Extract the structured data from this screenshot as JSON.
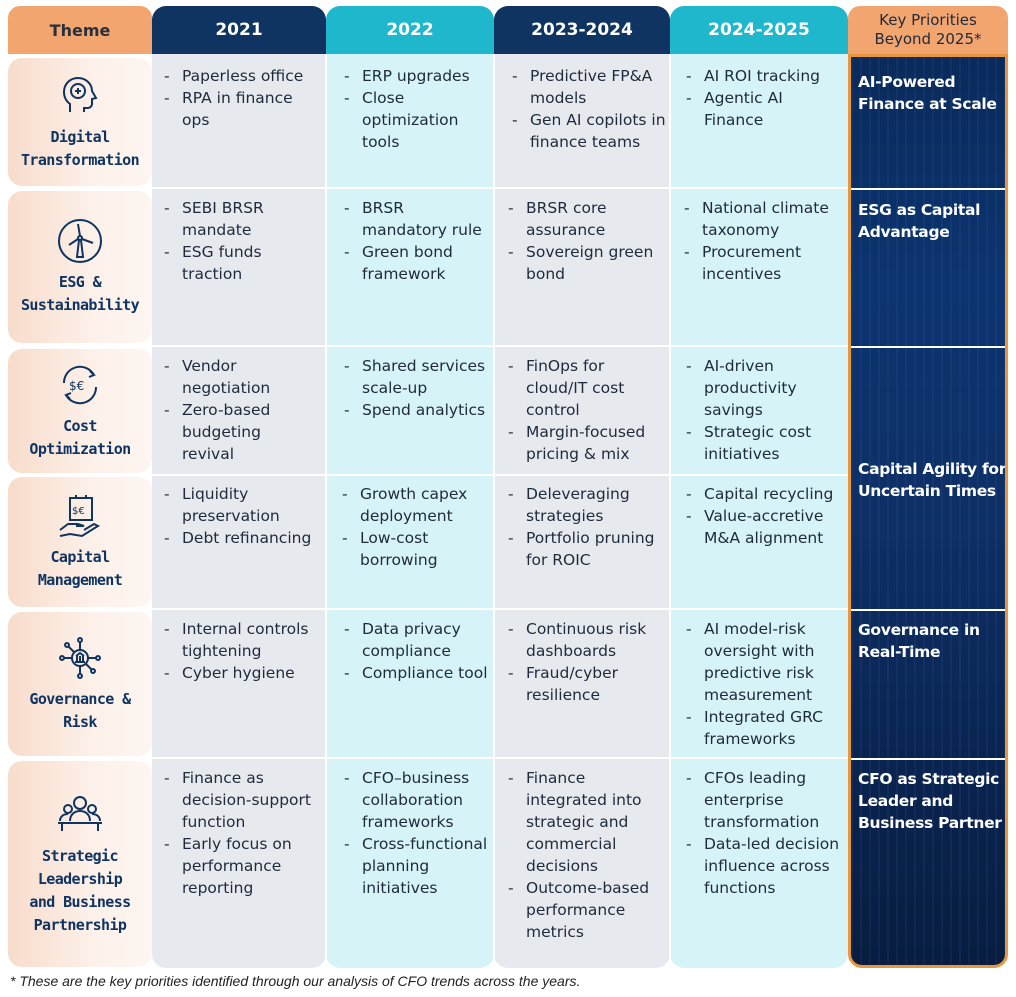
{
  "headers": {
    "theme": "Theme",
    "y2021": "2021",
    "y2022": "2022",
    "y2023": "2023-2024",
    "y2024": "2024-2025",
    "key": "Key Priorities Beyond 2025*"
  },
  "rows": [
    {
      "theme": "Digital\nTransformation",
      "icon": "brain-head-icon",
      "c2021": [
        "Paperless office",
        "RPA in finance ops"
      ],
      "c2022": [
        "ERP upgrades",
        "Close optimization tools"
      ],
      "c2023": [
        "Predictive FP&A models",
        "Gen AI copilots in finance teams"
      ],
      "c2024": [
        "AI ROI tracking",
        "Agentic AI Finance"
      ]
    },
    {
      "theme": "ESG &\nSustainability",
      "icon": "wind-turbine-icon",
      "c2021": [
        "SEBI BRSR mandate",
        "ESG funds traction"
      ],
      "c2022": [
        "BRSR mandatory rule",
        "Green bond framework"
      ],
      "c2023": [
        "BRSR core assurance",
        "Sovereign green bond"
      ],
      "c2024": [
        "National climate taxonomy",
        "Procurement incentives"
      ]
    },
    {
      "theme": "Cost\nOptimization",
      "icon": "currency-cycle-icon",
      "c2021": [
        "Vendor negotiation",
        "Zero-based budgeting revival"
      ],
      "c2022": [
        "Shared services scale-up",
        "Spend analytics"
      ],
      "c2023": [
        "FinOps for cloud/IT cost control",
        "Margin-focused pricing & mix"
      ],
      "c2024": [
        "AI-driven productivity savings",
        "Strategic cost initiatives"
      ]
    },
    {
      "theme": "Capital\nManagement",
      "icon": "hand-money-icon",
      "c2021": [
        "Liquidity preservation",
        "Debt refinancing"
      ],
      "c2022": [
        "Growth capex deployment",
        "Low-cost borrowing"
      ],
      "c2023": [
        "Deleveraging strategies",
        "Portfolio pruning for ROIC"
      ],
      "c2024": [
        "Capital recycling",
        "Value-accretive M&A alignment"
      ]
    },
    {
      "theme": "Governance &\nRisk",
      "icon": "institution-network-icon",
      "c2021": [
        "Internal controls tightening",
        "Cyber hygiene"
      ],
      "c2022": [
        "Data privacy compliance",
        "Compliance tool"
      ],
      "c2023": [
        "Continuous risk dashboards",
        "Fraud/cyber resilience"
      ],
      "c2024": [
        "AI model-risk oversight with predictive risk measurement",
        "Integrated GRC frameworks"
      ]
    },
    {
      "theme": "Strategic\nLeadership\nand Business\nPartnership",
      "icon": "team-leader-icon",
      "c2021": [
        "Finance as decision-support function",
        "Early focus on performance reporting"
      ],
      "c2022": [
        "CFO–business collaboration frameworks",
        "Cross-functional planning initiatives"
      ],
      "c2023": [
        "Finance integrated into strategic and commercial decisions",
        "Outcome-based performance metrics"
      ],
      "c2024": [
        "CFOs leading enterprise transformation",
        "Data-led decision influence across functions"
      ]
    }
  ],
  "key_priorities": [
    "AI-Powered Finance at Scale",
    "ESG as Capital Advantage",
    "Capital Agility for Uncertain Times",
    "Governance in Real-Time",
    "CFO as Strategic Leader and Business Partner"
  ],
  "footnote": "* These are the key priorities identified through our analysis of CFO trends across the years.",
  "colors": {
    "navy": "#0f3461",
    "teal": "#1fb7cc",
    "orange": "#f2a56e",
    "grey_col": "#e6e9ee",
    "teal_col": "#d6f3f7"
  }
}
